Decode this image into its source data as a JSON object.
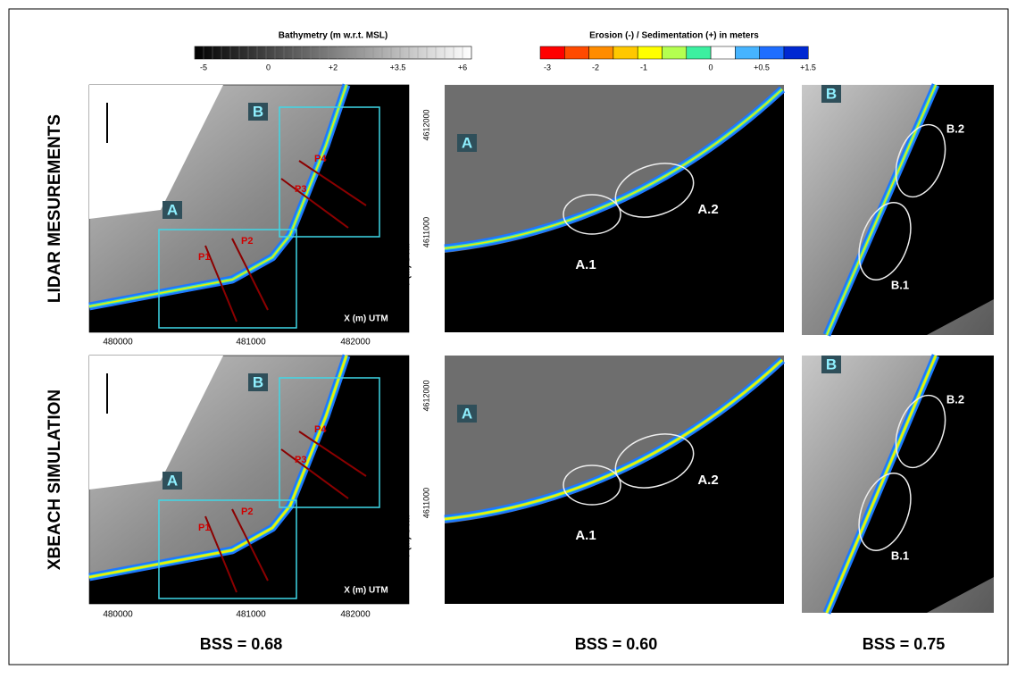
{
  "legend_bathymetry": {
    "title": "Bathymetry (m w.r.t. MSL)",
    "labels": [
      "-5",
      "0",
      "+2",
      "+3.5",
      "+6"
    ]
  },
  "legend_erosion": {
    "title": "Erosion (-) / Sedimentation (+) in meters",
    "labels": [
      "-3",
      "-2",
      "-1",
      "0",
      "+0.5",
      "+1.5"
    ]
  },
  "rows": [
    {
      "label": "LIDAR MESUREMENTS"
    },
    {
      "label": "XBEACH SIMULATION"
    }
  ],
  "overview": {
    "box_a": "A",
    "box_b": "B",
    "profiles": [
      "P1",
      "P2",
      "P3",
      "P4"
    ],
    "x_axis_label": "X (m) UTM",
    "y_axis_label": "Y (m) UTM",
    "x_ticks": [
      "480000",
      "481000",
      "482000"
    ],
    "y_ticks": [
      "4611000",
      "4612000"
    ]
  },
  "zoom_a": {
    "label": "A",
    "areas": [
      "A.1",
      "A.2"
    ]
  },
  "zoom_b": {
    "label": "B",
    "areas": [
      "B.1",
      "B.2"
    ]
  },
  "bss": [
    "BSS = 0.68",
    "BSS = 0.60",
    "BSS = 0.75"
  ]
}
